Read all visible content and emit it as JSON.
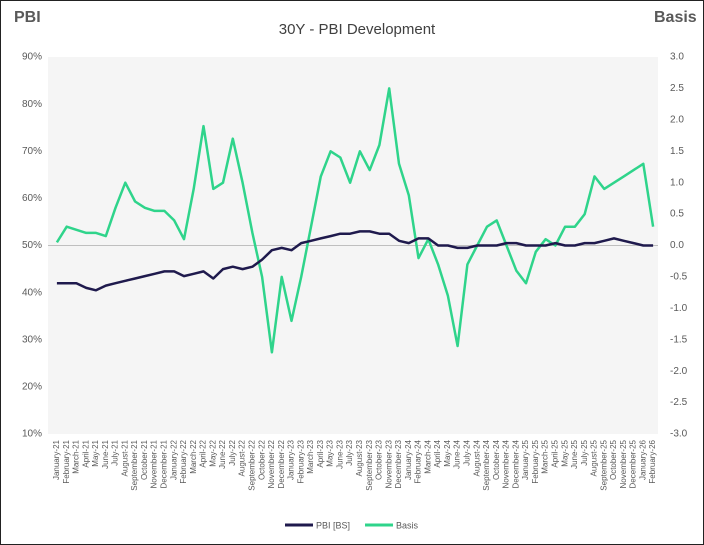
{
  "chart_data": {
    "type": "line",
    "title": "30Y - PBI Development",
    "y_label": "PBI",
    "y2_label": "Basis",
    "categories": [
      "January-21",
      "February-21",
      "March-21",
      "April-21",
      "May-21",
      "June-21",
      "July-21",
      "August-21",
      "September-21",
      "October-21",
      "November-21",
      "December-21",
      "January-22",
      "February-22",
      "March-22",
      "April-22",
      "May-22",
      "June-22",
      "July-22",
      "August-22",
      "September-22",
      "October-22",
      "November-22",
      "December-22",
      "January-23",
      "February-23",
      "March-23",
      "April-23",
      "May-23",
      "June-23",
      "July-23",
      "August-23",
      "September-23",
      "October-23",
      "November-23",
      "December-23",
      "January-24",
      "February-24",
      "March-24",
      "April-24",
      "May-24",
      "June-24",
      "July-24",
      "August-24",
      "September-24",
      "October-24",
      "November-24",
      "December-24",
      "January-25",
      "February-25",
      "March-25",
      "April-25",
      "May-25",
      "June-25",
      "July-25",
      "August-25",
      "September-25",
      "October-25",
      "November-25",
      "December-25",
      "January-26",
      "February-26"
    ],
    "series": [
      {
        "name": "PBI [BS]",
        "color": "#1f1a4d",
        "axis": "y",
        "values": [
          42,
          42,
          42,
          41,
          40.5,
          41.5,
          42,
          42.5,
          43,
          43.5,
          44,
          44.5,
          44.5,
          43.5,
          44,
          44.5,
          43,
          45,
          45.5,
          45,
          45.5,
          47,
          49,
          49.5,
          49,
          50.5,
          51,
          51.5,
          52,
          52.5,
          52.5,
          53,
          53,
          52.5,
          52.5,
          51,
          50.5,
          51.5,
          51.5,
          50,
          50,
          49.5,
          49.5,
          50,
          50,
          50,
          50.5,
          50.5,
          50,
          50,
          50,
          50.5,
          50,
          50,
          50.5,
          50.5,
          51,
          51.5,
          51,
          50.5,
          50,
          50
        ]
      },
      {
        "name": "Basis",
        "color": "#2fd48b",
        "axis": "y2",
        "values": [
          0.05,
          0.3,
          0.25,
          0.2,
          0.2,
          0.15,
          0.6,
          1.0,
          0.7,
          0.6,
          0.55,
          0.55,
          0.4,
          0.1,
          0.9,
          1.9,
          0.9,
          1.0,
          1.7,
          1.0,
          0.2,
          -0.5,
          -1.7,
          -0.5,
          -1.2,
          -0.5,
          0.3,
          1.1,
          1.5,
          1.4,
          1.0,
          1.5,
          1.2,
          1.6,
          2.5,
          1.3,
          0.8,
          -0.2,
          0.1,
          -0.3,
          -0.8,
          -1.6,
          -0.3,
          0,
          0.3,
          0.4,
          0,
          -0.4,
          -0.6,
          -0.1,
          0.1,
          0,
          0.3,
          0.3,
          0.5,
          1.1,
          0.9,
          1.0,
          1.1,
          1.2,
          1.3,
          0.3
        ]
      }
    ],
    "ylim": [
      10,
      90
    ],
    "yticks": [
      {
        "value": 10,
        "label": "10%"
      },
      {
        "value": 20,
        "label": "20%"
      },
      {
        "value": 30,
        "label": "30%"
      },
      {
        "value": 40,
        "label": "40%"
      },
      {
        "value": 50,
        "label": "50%"
      },
      {
        "value": 60,
        "label": "60%"
      },
      {
        "value": 70,
        "label": "70%"
      },
      {
        "value": 80,
        "label": "80%"
      },
      {
        "value": 90,
        "label": "90%"
      }
    ],
    "y2lim": [
      -3,
      3
    ],
    "y2ticks": [
      {
        "value": -3,
        "label": "-3.0"
      },
      -2.5,
      {
        "value": -2,
        "label": "-2.0"
      },
      -1.5,
      {
        "value": -1,
        "label": "-1.0"
      },
      -0.5,
      {
        "value": 0,
        "label": "0.0"
      },
      0.5,
      {
        "value": 1,
        "label": "1.0"
      },
      1.5,
      {
        "value": 2,
        "label": "2.0"
      },
      2.5,
      {
        "value": 3,
        "label": "3.0"
      }
    ],
    "grid": false,
    "legend": "bottom"
  }
}
